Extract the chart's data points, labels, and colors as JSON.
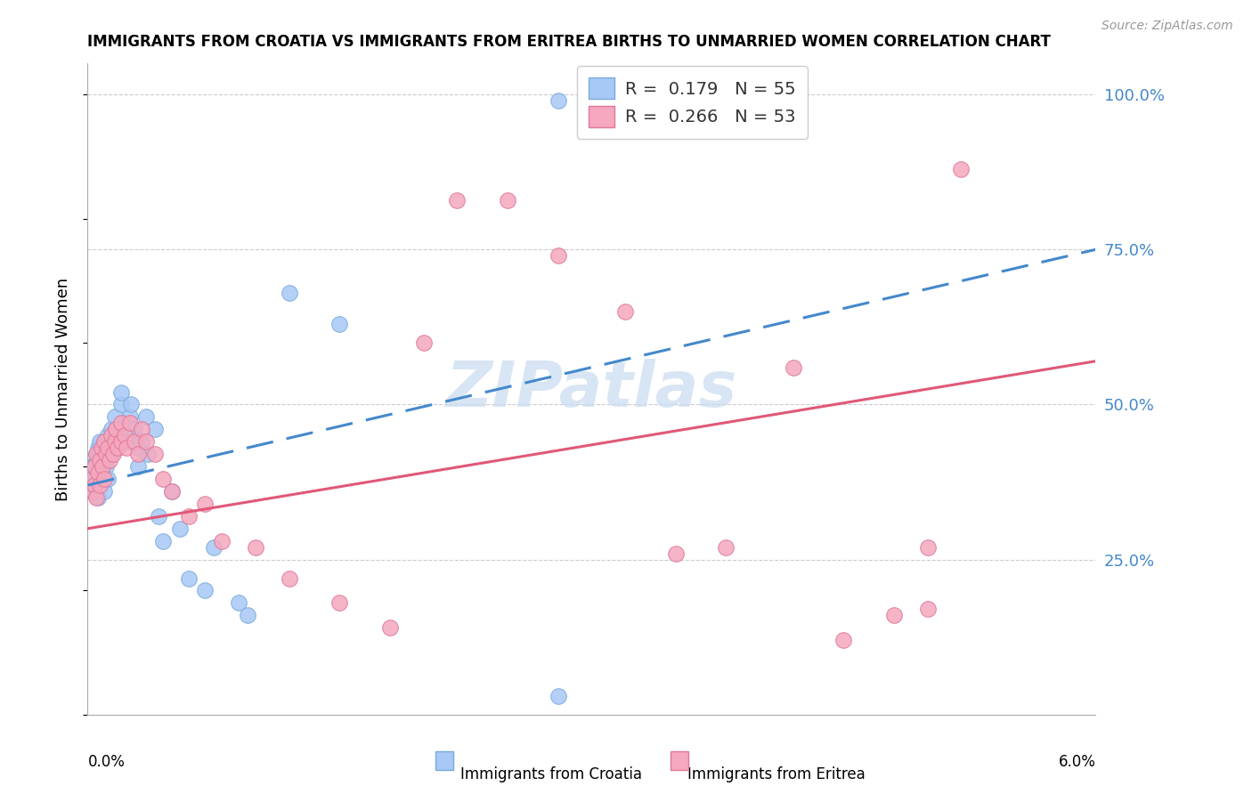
{
  "title": "IMMIGRANTS FROM CROATIA VS IMMIGRANTS FROM ERITREA BIRTHS TO UNMARRIED WOMEN CORRELATION CHART",
  "source": "Source: ZipAtlas.com",
  "ylabel": "Births to Unmarried Women",
  "xmin": 0.0,
  "xmax": 0.06,
  "ymin": 0.0,
  "ymax": 1.05,
  "yticks": [
    0.25,
    0.5,
    0.75,
    1.0
  ],
  "ytick_labels": [
    "25.0%",
    "50.0%",
    "75.0%",
    "100.0%"
  ],
  "croatia_scatter_color": "#a8c8f5",
  "croatia_edge_color": "#7aaae0",
  "eritrea_scatter_color": "#f5a8be",
  "eritrea_edge_color": "#e07898",
  "trend_croatia_color": "#4488cc",
  "trend_eritrea_color": "#e05878",
  "watermark": "ZIPatlas",
  "watermark_color": "#c8daf0",
  "legend_r1": "R = ",
  "legend_r1_val": "0.179",
  "legend_n1": "   N = ",
  "legend_n1_val": "55",
  "legend_r2": "R = ",
  "legend_r2_val": "0.266",
  "legend_n2": "   N = ",
  "legend_n2_val": "53",
  "croatia_x": [
    0.0003,
    0.0003,
    0.0003,
    0.0004,
    0.0004,
    0.0005,
    0.0005,
    0.0005,
    0.0006,
    0.0006,
    0.0007,
    0.0007,
    0.0008,
    0.0008,
    0.0009,
    0.001,
    0.001,
    0.001,
    0.0011,
    0.0012,
    0.0012,
    0.0013,
    0.0014,
    0.0014,
    0.0015,
    0.0016,
    0.0017,
    0.0018,
    0.002,
    0.002,
    0.0022,
    0.0023,
    0.0025,
    0.0025,
    0.0026,
    0.0028,
    0.003,
    0.003,
    0.0032,
    0.0035,
    0.0036,
    0.004,
    0.0042,
    0.0045,
    0.005,
    0.0055,
    0.006,
    0.007,
    0.0075,
    0.009,
    0.0095,
    0.012,
    0.015,
    0.028,
    0.028
  ],
  "croatia_y": [
    0.38,
    0.4,
    0.37,
    0.39,
    0.36,
    0.41,
    0.42,
    0.38,
    0.43,
    0.35,
    0.42,
    0.44,
    0.4,
    0.38,
    0.41,
    0.44,
    0.42,
    0.36,
    0.4,
    0.45,
    0.38,
    0.43,
    0.42,
    0.46,
    0.44,
    0.48,
    0.46,
    0.43,
    0.5,
    0.52,
    0.47,
    0.45,
    0.44,
    0.48,
    0.5,
    0.46,
    0.43,
    0.4,
    0.44,
    0.48,
    0.42,
    0.46,
    0.32,
    0.28,
    0.36,
    0.3,
    0.22,
    0.2,
    0.27,
    0.18,
    0.16,
    0.68,
    0.63,
    0.99,
    0.03
  ],
  "eritrea_x": [
    0.0003,
    0.0003,
    0.0004,
    0.0004,
    0.0005,
    0.0005,
    0.0006,
    0.0007,
    0.0007,
    0.0008,
    0.0009,
    0.001,
    0.001,
    0.0011,
    0.0012,
    0.0013,
    0.0014,
    0.0015,
    0.0016,
    0.0017,
    0.0018,
    0.002,
    0.002,
    0.0022,
    0.0023,
    0.0025,
    0.0028,
    0.003,
    0.0032,
    0.0035,
    0.004,
    0.0045,
    0.005,
    0.006,
    0.007,
    0.008,
    0.01,
    0.012,
    0.015,
    0.018,
    0.02,
    0.022,
    0.025,
    0.028,
    0.032,
    0.035,
    0.038,
    0.042,
    0.045,
    0.048,
    0.05,
    0.05,
    0.052
  ],
  "eritrea_y": [
    0.38,
    0.36,
    0.4,
    0.37,
    0.42,
    0.35,
    0.39,
    0.41,
    0.37,
    0.43,
    0.4,
    0.44,
    0.38,
    0.42,
    0.43,
    0.41,
    0.45,
    0.42,
    0.44,
    0.46,
    0.43,
    0.47,
    0.44,
    0.45,
    0.43,
    0.47,
    0.44,
    0.42,
    0.46,
    0.44,
    0.42,
    0.38,
    0.36,
    0.32,
    0.34,
    0.28,
    0.27,
    0.22,
    0.18,
    0.14,
    0.6,
    0.83,
    0.83,
    0.74,
    0.65,
    0.26,
    0.27,
    0.56,
    0.12,
    0.16,
    0.27,
    0.17,
    0.88
  ],
  "trend_croatia_x0": 0.0,
  "trend_croatia_y0": 0.37,
  "trend_croatia_x1": 0.06,
  "trend_croatia_y1": 0.75,
  "trend_eritrea_x0": 0.0,
  "trend_eritrea_y0": 0.3,
  "trend_eritrea_x1": 0.06,
  "trend_eritrea_y1": 0.57
}
